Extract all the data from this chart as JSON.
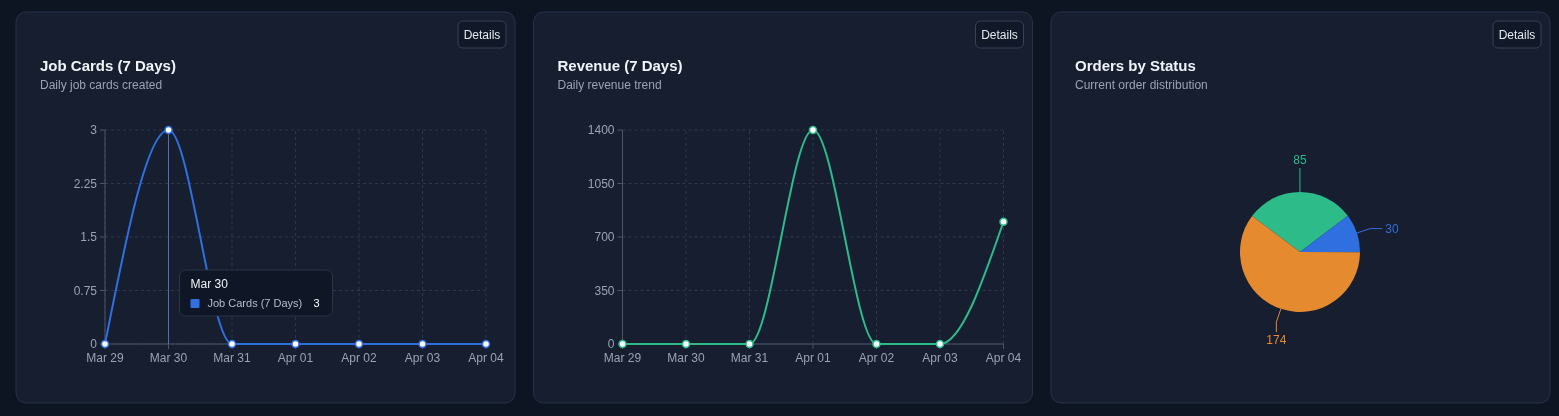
{
  "chart_data": [
    {
      "type": "line",
      "title": "Job Cards (7 Days)",
      "subtitle": "Daily job cards created",
      "annotations": [
        "Details",
        "Mar 30",
        "3"
      ],
      "categories": [
        "Mar 29",
        "Mar 30",
        "Mar 31",
        "Apr 01",
        "Apr 02",
        "Apr 03",
        "Apr 04"
      ],
      "series": [
        {
          "name": "Job Cards (7 Days)",
          "color": "#2f6fe0",
          "values": [
            0,
            3,
            0,
            0,
            0,
            0,
            0
          ]
        }
      ],
      "ref_lines": [
        {
          "axis": "x",
          "value": "Mar 30",
          "color": "#4f6db8"
        }
      ],
      "ylim": [
        0,
        3
      ],
      "yticks": [
        0,
        0.75,
        1.5,
        2.25,
        3
      ],
      "grid": true,
      "marker": "circle"
    },
    {
      "type": "line",
      "title": "Revenue (7 Days)",
      "subtitle": "Daily revenue trend",
      "annotations": [
        "Details"
      ],
      "categories": [
        "Mar 29",
        "Mar 30",
        "Mar 31",
        "Apr 01",
        "Apr 02",
        "Apr 03",
        "Apr 04"
      ],
      "series": [
        {
          "color": "#2dbb8a",
          "values": [
            0,
            0,
            0,
            1400,
            0,
            0,
            800
          ]
        }
      ],
      "ylim": [
        0,
        1400
      ],
      "yticks": [
        0,
        350,
        700,
        1050,
        1400
      ],
      "grid": true,
      "marker": "circle"
    },
    {
      "type": "pie",
      "title": "Orders by Status",
      "subtitle": "Current order distribution",
      "annotations": [
        "Details"
      ],
      "categories": [
        null,
        null,
        null
      ],
      "values": [
        85,
        30,
        174
      ],
      "colors": [
        "#2dbb8a",
        "#2f6fe0",
        "#e58a2f"
      ],
      "data_labels": true
    }
  ]
}
